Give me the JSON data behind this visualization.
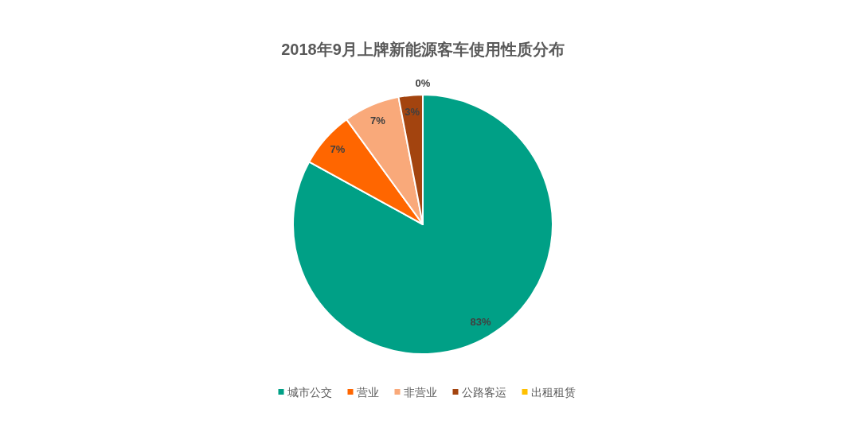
{
  "chart_data": {
    "type": "pie",
    "title": "2018年9月上牌新能源客车使用性质分布",
    "categories": [
      "城市公交",
      "营业",
      "非营业",
      "公路客运",
      "出租租赁"
    ],
    "values": [
      83,
      7,
      7,
      3,
      0
    ],
    "colors": [
      "#00a086",
      "#ff6600",
      "#f9a97a",
      "#a3440f",
      "#ffc000"
    ],
    "value_labels": [
      "83%",
      "7%",
      "7%",
      "3%",
      "0%"
    ],
    "legend": "bottom"
  }
}
